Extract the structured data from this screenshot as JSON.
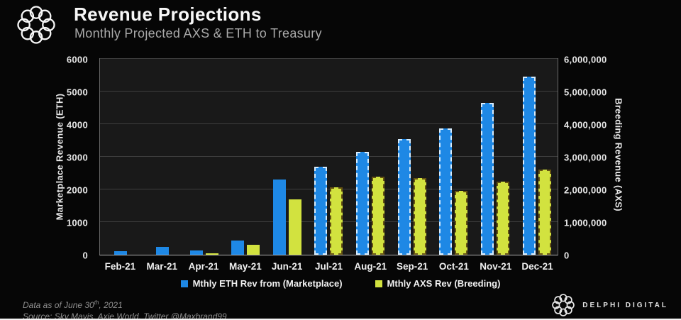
{
  "header": {
    "title": "Revenue Projections",
    "subtitle": "Monthly Projected AXS & ETH to Treasury"
  },
  "chart_data": {
    "type": "bar",
    "categories": [
      "Feb-21",
      "Mar-21",
      "Apr-21",
      "May-21",
      "Jun-21",
      "Jul-21",
      "Aug-21",
      "Sep-21",
      "Oct-21",
      "Nov-21",
      "Dec-21"
    ],
    "series": [
      {
        "name": "Mthly ETH Rev from (Marketplace)",
        "axis": "left",
        "color": "#1e88e5",
        "values": [
          100,
          230,
          120,
          430,
          2300,
          2700,
          3150,
          3550,
          3880,
          4650,
          5450
        ]
      },
      {
        "name": "Mthly AXS Rev (Breeding)",
        "axis": "right",
        "color": "#d2e23f",
        "values": [
          0,
          0,
          25000,
          310000,
          1700000,
          2060000,
          2400000,
          2350000,
          1950000,
          2250000,
          2600000
        ]
      }
    ],
    "projected_from_index": 5,
    "projected_style": "dashed-outline",
    "left_axis": {
      "label": "Marketplace Revenue (ETH)",
      "min": 0,
      "max": 6000,
      "ticks": [
        "0",
        "1000",
        "2000",
        "3000",
        "4000",
        "5000",
        "6000"
      ]
    },
    "right_axis": {
      "label": "Breeding Revenue (AXS)",
      "min": 0,
      "max": 6000000,
      "ticks": [
        "0",
        "1,000,000",
        "2,000,000",
        "3,000,000",
        "4,000,000",
        "5,000,000",
        "6,000,000"
      ]
    },
    "grid": true,
    "legend_position": "bottom"
  },
  "legend": {
    "items": [
      {
        "label": "Mthly ETH Rev from (Marketplace)",
        "color": "#1e88e5"
      },
      {
        "label": "Mthly AXS Rev (Breeding)",
        "color": "#d2e23f"
      }
    ]
  },
  "footer": {
    "note_prefix": "Data as of June 30",
    "note_sup": "th",
    "note_suffix": ", 2021",
    "source": "Source: Sky Mavis, Axie World, Twitter @Maxbrand99",
    "brand": "DELPHI DIGITAL"
  },
  "colors": {
    "background": "#060606",
    "plot_background": "#191919",
    "gridline": "#3e3e3e",
    "eth_bar": "#1e88e5",
    "axs_bar": "#d2e23f",
    "projected_eth_dash": "#e1f2ff",
    "projected_axs_dash": "#5f4b10"
  }
}
